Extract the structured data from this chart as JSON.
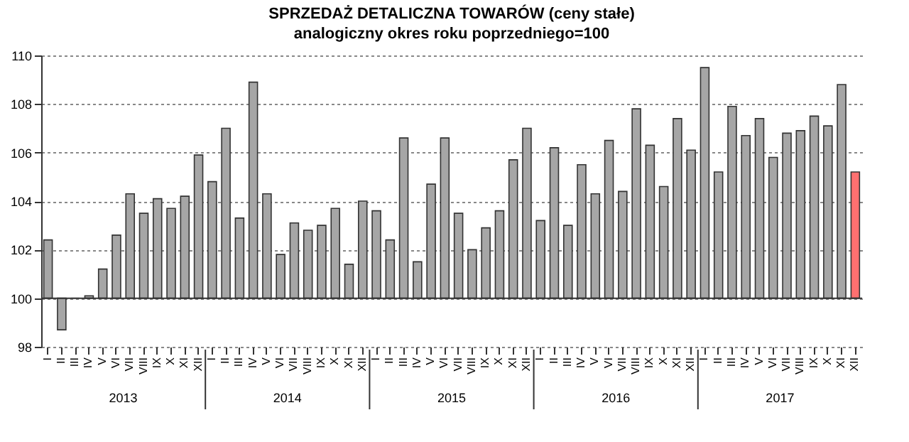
{
  "chart_data": {
    "type": "bar",
    "title": "SPRZEDAŻ DETALICZNA TOWARÓW  (ceny stałe)",
    "subtitle": "analogiczny okres roku poprzedniego=100",
    "categories": [
      "I",
      "II",
      "III",
      "IV",
      "V",
      "VI",
      "VII",
      "VIII",
      "IX",
      "X",
      "XI",
      "XII",
      "I",
      "II",
      "III",
      "IV",
      "V",
      "VI",
      "VII",
      "VIII",
      "IX",
      "X",
      "XI",
      "XII",
      "I",
      "II",
      "III",
      "IV",
      "V",
      "VI",
      "VII",
      "VIII",
      "IX",
      "X",
      "XI",
      "XII",
      "I",
      "II",
      "III",
      "IV",
      "V",
      "VI",
      "VII",
      "VIII",
      "IX",
      "X",
      "XI",
      "XII",
      "I",
      "II",
      "III",
      "IV",
      "V",
      "VI",
      "VII",
      "VIII",
      "IX",
      "X",
      "XI",
      "XII"
    ],
    "values": [
      2.4,
      -1.3,
      0.0,
      0.1,
      1.2,
      2.6,
      4.3,
      3.5,
      4.1,
      3.7,
      4.2,
      5.9,
      4.8,
      7.0,
      3.3,
      8.9,
      4.3,
      1.8,
      3.1,
      2.8,
      3.0,
      3.7,
      1.4,
      4.0,
      3.6,
      2.4,
      6.6,
      1.5,
      4.7,
      6.6,
      3.5,
      2.0,
      2.9,
      3.6,
      5.7,
      7.0,
      3.2,
      6.2,
      3.0,
      5.5,
      4.3,
      6.5,
      4.4,
      7.8,
      6.3,
      4.6,
      7.4,
      6.1,
      9.5,
      5.2,
      7.9,
      6.7,
      7.4,
      5.8,
      6.8,
      6.9,
      7.5,
      7.1,
      8.8,
      5.2
    ],
    "base": [
      100,
      100,
      100,
      100,
      100,
      100,
      100,
      100,
      100,
      100,
      100,
      100,
      100,
      100,
      100,
      100,
      100,
      100,
      100,
      100,
      100,
      100,
      100,
      100,
      100,
      100,
      100,
      100,
      100,
      100,
      100,
      100,
      100,
      100,
      100,
      100,
      100,
      100,
      100,
      100,
      100,
      100,
      100,
      100,
      100,
      100,
      100,
      100,
      100,
      100,
      100,
      100,
      100,
      100,
      100,
      100,
      100,
      100,
      100,
      100
    ],
    "colors": [
      "#a6a6a6",
      "#a6a6a6",
      "#a6a6a6",
      "#a6a6a6",
      "#a6a6a6",
      "#a6a6a6",
      "#a6a6a6",
      "#a6a6a6",
      "#a6a6a6",
      "#a6a6a6",
      "#a6a6a6",
      "#a6a6a6",
      "#a6a6a6",
      "#a6a6a6",
      "#a6a6a6",
      "#a6a6a6",
      "#a6a6a6",
      "#a6a6a6",
      "#a6a6a6",
      "#a6a6a6",
      "#a6a6a6",
      "#a6a6a6",
      "#a6a6a6",
      "#a6a6a6",
      "#a6a6a6",
      "#a6a6a6",
      "#a6a6a6",
      "#a6a6a6",
      "#a6a6a6",
      "#a6a6a6",
      "#a6a6a6",
      "#a6a6a6",
      "#a6a6a6",
      "#a6a6a6",
      "#a6a6a6",
      "#a6a6a6",
      "#a6a6a6",
      "#a6a6a6",
      "#a6a6a6",
      "#a6a6a6",
      "#a6a6a6",
      "#a6a6a6",
      "#a6a6a6",
      "#a6a6a6",
      "#a6a6a6",
      "#a6a6a6",
      "#a6a6a6",
      "#a6a6a6",
      "#a6a6a6",
      "#a6a6a6",
      "#a6a6a6",
      "#a6a6a6",
      "#a6a6a6",
      "#a6a6a6",
      "#a6a6a6",
      "#a6a6a6",
      "#a6a6a6",
      "#a6a6a6",
      "#a6a6a6",
      "#ff7070"
    ],
    "ylim": [
      98,
      110
    ],
    "yticks": [
      98,
      100,
      102,
      104,
      106,
      108,
      110
    ],
    "grid": "y",
    "ref_lines": [
      {
        "axis": "y",
        "value": 100
      }
    ],
    "annotations": [
      "2013",
      "2014",
      "2015",
      "2016",
      "2017"
    ]
  }
}
